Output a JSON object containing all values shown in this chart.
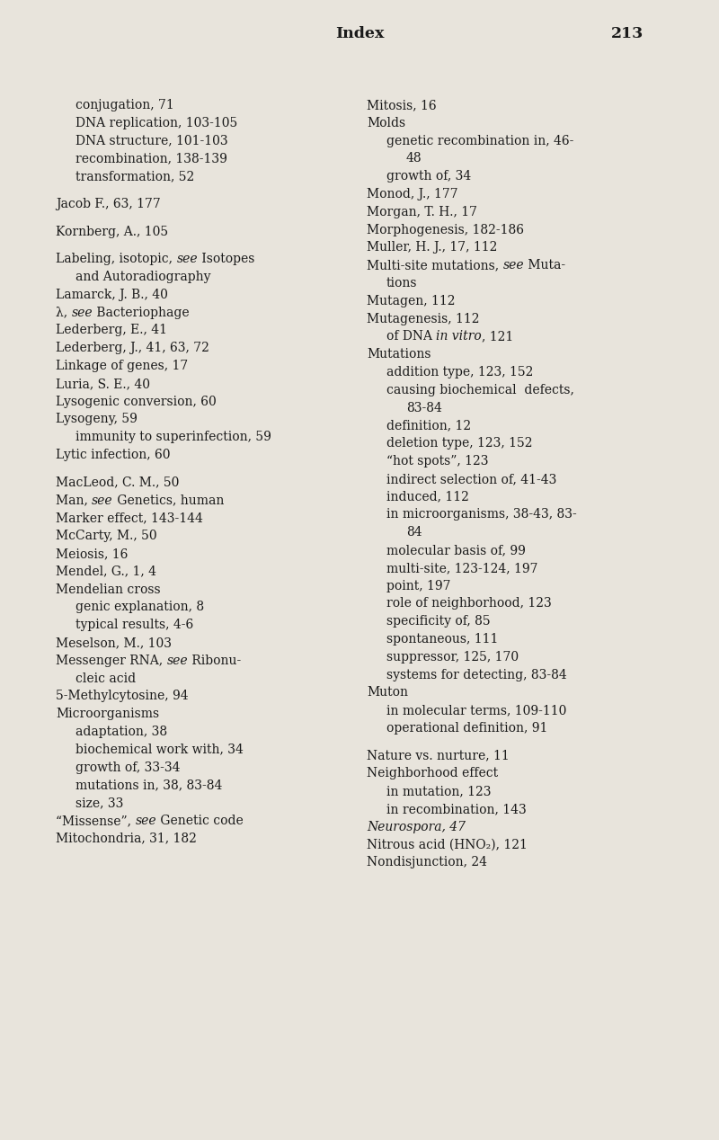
{
  "bg_color": "#e8e4dc",
  "text_color": "#1a1a1a",
  "title": "Index",
  "page_num": "213",
  "title_fontsize": 12.5,
  "body_fontsize": 10.0,
  "figsize": [
    8.0,
    12.68
  ],
  "dpi": 100,
  "left_entries": [
    {
      "text": "conjugation, 71",
      "indent": 1
    },
    {
      "text": "DNA replication, 103-105",
      "indent": 1
    },
    {
      "text": "DNA structure, 101-103",
      "indent": 1
    },
    {
      "text": "recombination, 138-139",
      "indent": 1
    },
    {
      "text": "transformation, 52",
      "indent": 1
    },
    {
      "text": "",
      "indent": 0
    },
    {
      "text": "Jacob F., 63, 177",
      "indent": 0
    },
    {
      "text": "",
      "indent": 0
    },
    {
      "text": "Kornberg, A., 105",
      "indent": 0
    },
    {
      "text": "",
      "indent": 0
    },
    {
      "text": "Labeling, isotopic, ",
      "indent": 0,
      "parts": [
        [
          "Labeling, isotopic, ",
          false
        ],
        [
          "see",
          true
        ],
        [
          " Isotopes",
          false
        ]
      ]
    },
    {
      "text": "    ​and Autoradiography",
      "indent": 1,
      "parts": [
        [
          "    ​and Autoradiography",
          false
        ]
      ]
    },
    {
      "text": "Lamarck, J. B., 40",
      "indent": 0
    },
    {
      "text": "λ, ",
      "indent": 0,
      "parts": [
        [
          "λ, ",
          false
        ],
        [
          "see",
          true
        ],
        [
          " Bacteriophage",
          false
        ]
      ]
    },
    {
      "text": "Lederberg, E., 41",
      "indent": 0
    },
    {
      "text": "Lederberg, J., 41, 63, 72",
      "indent": 0
    },
    {
      "text": "Linkage of genes, 17",
      "indent": 0
    },
    {
      "text": "Luria, S. E., 40",
      "indent": 0
    },
    {
      "text": "Lysogenic conversion, 60",
      "indent": 0
    },
    {
      "text": "Lysogeny, 59",
      "indent": 0
    },
    {
      "text": "    immunity to superinfection, 59",
      "indent": 1
    },
    {
      "text": "Lytic infection, 60",
      "indent": 0
    },
    {
      "text": "",
      "indent": 0
    },
    {
      "text": "MacLeod, C. M., 50",
      "indent": 0
    },
    {
      "text": "Man, ",
      "indent": 0,
      "parts": [
        [
          "Man, ",
          false
        ],
        [
          "see",
          true
        ],
        [
          " Genetics, human",
          false
        ]
      ]
    },
    {
      "text": "Marker effect, 143-144",
      "indent": 0
    },
    {
      "text": "McCarty, M., 50",
      "indent": 0
    },
    {
      "text": "Meiosis, 16",
      "indent": 0
    },
    {
      "text": "Mendel, G., 1, 4",
      "indent": 0
    },
    {
      "text": "Mendelian cross",
      "indent": 0
    },
    {
      "text": "    genic explanation, 8",
      "indent": 1
    },
    {
      "text": "    typical results, 4-6",
      "indent": 1
    },
    {
      "text": "Meselson, M., 103",
      "indent": 0
    },
    {
      "text": "Messenger RNA, ",
      "indent": 0,
      "parts": [
        [
          "Messenger RNA, ",
          false
        ],
        [
          "see",
          true
        ],
        [
          " Ribonu-",
          false
        ]
      ]
    },
    {
      "text": "    cleic acid",
      "indent": 1
    },
    {
      "text": "5-Methylcytosine, 94",
      "indent": 0
    },
    {
      "text": "Microorganisms",
      "indent": 0
    },
    {
      "text": "    adaptation, 38",
      "indent": 1
    },
    {
      "text": "    biochemical work with, 34",
      "indent": 1
    },
    {
      "text": "    growth of, 33-34",
      "indent": 1
    },
    {
      "text": "    mutations in, 38, 83-84",
      "indent": 1
    },
    {
      "text": "    size, 33",
      "indent": 1
    },
    {
      "text": "“Missense”, ",
      "indent": 0,
      "parts": [
        [
          "“Missense”, ",
          false
        ],
        [
          "see",
          true
        ],
        [
          " Genetic code",
          false
        ]
      ]
    },
    {
      "text": "Mitochondria, 31, 182",
      "indent": 0
    }
  ],
  "right_entries": [
    {
      "text": "Mitosis, 16",
      "indent": 0
    },
    {
      "text": "Molds",
      "indent": 0
    },
    {
      "text": "    genetic recombination in, 46-",
      "indent": 1
    },
    {
      "text": "        48",
      "indent": 2
    },
    {
      "text": "    growth of, 34",
      "indent": 1
    },
    {
      "text": "Monod, J., 177",
      "indent": 0
    },
    {
      "text": "Morgan, T. H., 17",
      "indent": 0
    },
    {
      "text": "Morphogenesis, 182-186",
      "indent": 0
    },
    {
      "text": "Muller, H. J., 17, 112",
      "indent": 0
    },
    {
      "text": "Multi-site mutations, ",
      "indent": 0,
      "parts": [
        [
          "Multi-site mutations, ",
          false
        ],
        [
          "see",
          true
        ],
        [
          " Muta-",
          false
        ]
      ]
    },
    {
      "text": "    tions",
      "indent": 1
    },
    {
      "text": "Mutagen, 112",
      "indent": 0
    },
    {
      "text": "Mutagenesis, 112",
      "indent": 0
    },
    {
      "text": "    of DNA ",
      "indent": 1,
      "parts": [
        [
          "    of DNA ",
          false
        ],
        [
          "in vitro",
          true
        ],
        [
          ", 121",
          false
        ]
      ]
    },
    {
      "text": "Mutations",
      "indent": 0
    },
    {
      "text": "    addition type, 123, 152",
      "indent": 1
    },
    {
      "text": "    causing biochemical  defects,",
      "indent": 1
    },
    {
      "text": "        83-84",
      "indent": 2
    },
    {
      "text": "    definition, 12",
      "indent": 1
    },
    {
      "text": "    deletion type, 123, 152",
      "indent": 1
    },
    {
      "text": "    “hot spots”, 123",
      "indent": 1
    },
    {
      "text": "    indirect selection of, 41-43",
      "indent": 1
    },
    {
      "text": "    induced, 112",
      "indent": 1
    },
    {
      "text": "    in microorganisms, 38-43, 83-",
      "indent": 1
    },
    {
      "text": "        84",
      "indent": 2
    },
    {
      "text": "    molecular basis of, 99",
      "indent": 1
    },
    {
      "text": "    multi-site, 123-124, 197",
      "indent": 1
    },
    {
      "text": "    point, 197",
      "indent": 1
    },
    {
      "text": "    role of neighborhood, 123",
      "indent": 1
    },
    {
      "text": "    specificity of, 85",
      "indent": 1
    },
    {
      "text": "    spontaneous, 111",
      "indent": 1
    },
    {
      "text": "    suppressor, 125, 170",
      "indent": 1
    },
    {
      "text": "    systems for detecting, 83-84",
      "indent": 1
    },
    {
      "text": "Muton",
      "indent": 0
    },
    {
      "text": "    in molecular terms, 109-110",
      "indent": 1
    },
    {
      "text": "    operational definition, 91",
      "indent": 1
    },
    {
      "text": "",
      "indent": 0
    },
    {
      "text": "Nature vs. nurture, 11",
      "indent": 0
    },
    {
      "text": "Neighborhood effect",
      "indent": 0
    },
    {
      "text": "    in mutation, 123",
      "indent": 1
    },
    {
      "text": "    in recombination, 143",
      "indent": 1
    },
    {
      "text": "Neurospora, 47",
      "indent": 0,
      "full_italic": true
    },
    {
      "text": "Nitrous acid (HNO₂), 121",
      "indent": 0
    },
    {
      "text": "Nondisjunction, 24",
      "indent": 0
    }
  ]
}
